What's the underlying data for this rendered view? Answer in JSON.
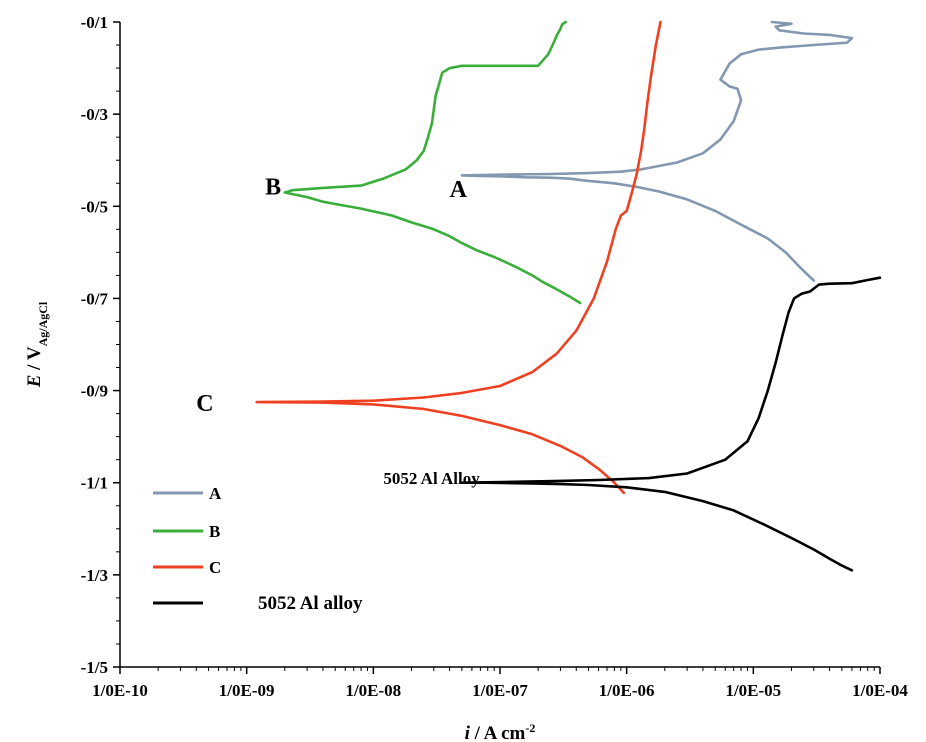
{
  "chart_data": {
    "type": "line",
    "xlabel_italic": "i",
    "xlabel_rest": " / A cm",
    "xlabel_sup": "-2",
    "ylabel_italic": "E",
    "ylabel_rest": " / V",
    "ylabel_sub": "Ag/AgCl",
    "x_scale": "log",
    "xlim": [
      1e-10,
      0.0001
    ],
    "ylim": [
      -1.5,
      -0.1
    ],
    "x_tick_labels": [
      "1/0E-10",
      "1/0E-09",
      "1/0E-08",
      "1/0E-07",
      "1/0E-06",
      "1/0E-05",
      "1/0E-04"
    ],
    "x_tick_values": [
      1e-10,
      1e-09,
      1e-08,
      1e-07,
      1e-06,
      1e-05,
      0.0001
    ],
    "y_tick_labels": [
      "-0/1",
      "-0/3",
      "-0/5",
      "-0/7",
      "-0/9",
      "-1/1",
      "-1/3",
      "-1/5"
    ],
    "y_tick_values": [
      -0.1,
      -0.3,
      -0.5,
      -0.7,
      -0.9,
      -1.1,
      -1.3,
      -1.5
    ],
    "grid": false,
    "legend_position": "bottom-left",
    "series": [
      {
        "name": "A",
        "color": "#8497b0",
        "x": [
          3e-05,
          2.6e-05,
          2.2e-05,
          1.8e-05,
          1.3e-05,
          8e-06,
          5e-06,
          3e-06,
          1.8e-06,
          1.2e-06,
          8e-07,
          5e-07,
          3.5e-07,
          2.5e-07,
          1.6e-07,
          1e-07,
          7e-08,
          5e-08,
          7e-08,
          1.2e-07,
          2.5e-07,
          5e-07,
          9e-07,
          1.3e-06,
          2.5e-06,
          4e-06,
          5.5e-06,
          7e-06,
          8e-06,
          7.5e-06,
          6.5e-06,
          5.5e-06,
          6.5e-06,
          8e-06,
          1.1e-05,
          1.7e-05,
          3e-05,
          5.5e-05,
          6e-05,
          4e-05,
          2.5e-05,
          1.6e-05,
          1.5e-05,
          2e-05,
          1.4e-05
        ],
        "y": [
          -0.661,
          -0.645,
          -0.625,
          -0.6,
          -0.57,
          -0.54,
          -0.51,
          -0.485,
          -0.468,
          -0.458,
          -0.45,
          -0.445,
          -0.44,
          -0.438,
          -0.437,
          -0.435,
          -0.434,
          -0.433,
          -0.432,
          -0.431,
          -0.43,
          -0.428,
          -0.425,
          -0.42,
          -0.405,
          -0.385,
          -0.355,
          -0.315,
          -0.27,
          -0.245,
          -0.24,
          -0.225,
          -0.19,
          -0.17,
          -0.16,
          -0.155,
          -0.15,
          -0.145,
          -0.135,
          -0.128,
          -0.125,
          -0.118,
          -0.11,
          -0.104,
          -0.1
        ]
      },
      {
        "name": "B",
        "color": "#3aae3a",
        "x": [
          4.3e-07,
          3.5e-07,
          2.8e-07,
          2.2e-07,
          1.8e-07,
          1.3e-07,
          9e-08,
          6.5e-08,
          5e-08,
          4e-08,
          3e-08,
          2e-08,
          1.4e-08,
          8e-09,
          5e-09,
          4e-09,
          3e-09,
          2e-09,
          2.3e-09,
          4e-09,
          8e-09,
          1.2e-08,
          1.8e-08,
          2.2e-08,
          2.5e-08,
          2.7e-08,
          2.9e-08,
          3e-08,
          3.1e-08,
          3.3e-08,
          3.5e-08,
          4e-08,
          5e-08,
          1e-07,
          2e-07,
          2.4e-07,
          2.6e-07,
          2.8e-07,
          3e-07,
          3.1e-07,
          3.3e-07
        ],
        "y": [
          -0.71,
          -0.695,
          -0.68,
          -0.665,
          -0.65,
          -0.63,
          -0.61,
          -0.595,
          -0.58,
          -0.565,
          -0.55,
          -0.535,
          -0.52,
          -0.505,
          -0.495,
          -0.49,
          -0.48,
          -0.47,
          -0.465,
          -0.46,
          -0.455,
          -0.44,
          -0.42,
          -0.4,
          -0.38,
          -0.35,
          -0.32,
          -0.29,
          -0.26,
          -0.235,
          -0.21,
          -0.2,
          -0.195,
          -0.195,
          -0.195,
          -0.17,
          -0.15,
          -0.13,
          -0.115,
          -0.105,
          -0.1
        ]
      },
      {
        "name": "C",
        "color": "#ef4122",
        "x": [
          9.5e-07,
          8e-07,
          6e-07,
          4.5e-07,
          3e-07,
          1.8e-07,
          1e-07,
          5e-08,
          2.5e-08,
          1e-08,
          4e-09,
          1.2e-09,
          4e-09,
          1e-08,
          2.5e-08,
          5e-08,
          1e-07,
          1.8e-07,
          2.8e-07,
          4e-07,
          5.5e-07,
          7e-07,
          8.2e-07,
          9e-07,
          1e-06,
          1.1e-06,
          1.2e-06,
          1.3e-06,
          1.38e-06,
          1.45e-06,
          1.55e-06,
          1.7e-06,
          1.85e-06
        ],
        "y": [
          -1.122,
          -1.1,
          -1.07,
          -1.045,
          -1.02,
          -0.995,
          -0.975,
          -0.955,
          -0.94,
          -0.93,
          -0.926,
          -0.925,
          -0.924,
          -0.922,
          -0.915,
          -0.905,
          -0.89,
          -0.86,
          -0.82,
          -0.77,
          -0.7,
          -0.62,
          -0.55,
          -0.52,
          -0.51,
          -0.47,
          -0.43,
          -0.38,
          -0.33,
          -0.28,
          -0.22,
          -0.15,
          -0.1
        ]
      },
      {
        "name": "5052 Al alloy",
        "color": "#000000",
        "x": [
          6e-05,
          5e-05,
          4e-05,
          3e-05,
          2e-05,
          1.2e-05,
          7e-06,
          4e-06,
          2e-06,
          1e-06,
          5e-07,
          3e-07,
          2e-07,
          1.3e-07,
          8e-08,
          5e-08,
          8e-08,
          1.3e-07,
          3e-07,
          6e-07,
          1.5e-06,
          3e-06,
          6e-06,
          9e-06,
          1.1e-05,
          1.3e-05,
          1.5e-05,
          1.7e-05,
          1.9e-05,
          2.1e-05,
          2.4e-05,
          2.8e-05,
          3.3e-05,
          4e-05,
          6e-05,
          8e-05,
          0.0001
        ],
        "y": [
          -1.29,
          -1.28,
          -1.265,
          -1.245,
          -1.22,
          -1.19,
          -1.16,
          -1.14,
          -1.12,
          -1.11,
          -1.105,
          -1.103,
          -1.102,
          -1.101,
          -1.1,
          -1.1,
          -1.099,
          -1.098,
          -1.096,
          -1.094,
          -1.09,
          -1.08,
          -1.05,
          -1.01,
          -0.96,
          -0.9,
          -0.84,
          -0.78,
          -0.73,
          -0.7,
          -0.69,
          -0.685,
          -0.67,
          -0.668,
          -0.667,
          -0.66,
          -0.655
        ]
      }
    ],
    "annotations": [
      {
        "text": "A",
        "x": 4e-08,
        "y": -0.46
      },
      {
        "text": "B",
        "x": 1.4e-09,
        "y": -0.455
      },
      {
        "text": "C",
        "x": 4e-10,
        "y": -0.925
      },
      {
        "text": "5052 Al Alloy",
        "x": 1.2e-08,
        "y": -1.09
      }
    ],
    "legend": [
      {
        "label": "A",
        "color": "#8497b0"
      },
      {
        "label": "B",
        "color": "#3aae3a"
      },
      {
        "label": "C",
        "color": "#ef4122"
      },
      {
        "label": "5052 Al alloy",
        "color": "#000000"
      }
    ]
  }
}
